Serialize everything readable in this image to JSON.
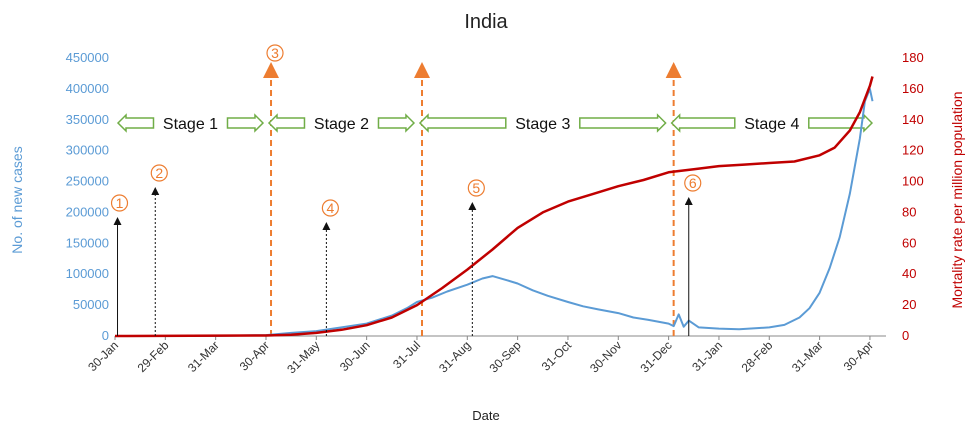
{
  "chart_data": {
    "type": "line",
    "title": "India",
    "xlabel": "Date",
    "ylabel_left": "No. of new cases",
    "ylabel_right": "Mortality rate per million population",
    "ylim_left": [
      0,
      450000
    ],
    "ylim_right": [
      0,
      180
    ],
    "yticks_left": [
      "0",
      "50000",
      "100000",
      "150000",
      "200000",
      "250000",
      "300000",
      "350000",
      "400000",
      "450000"
    ],
    "yticks_right": [
      "0",
      "20",
      "40",
      "60",
      "80",
      "100",
      "120",
      "140",
      "160",
      "180"
    ],
    "x_categories": [
      "30-Jan",
      "29-Feb",
      "31-Mar",
      "30-Apr",
      "31-May",
      "30-Jun",
      "31-Jul",
      "31-Aug",
      "30-Sep",
      "31-Oct",
      "30-Nov",
      "31-Dec",
      "31-Jan",
      "28-Feb",
      "31-Mar",
      "30-Apr"
    ],
    "colors": {
      "cases": "#5b9bd5",
      "mortality": "#c00000",
      "stage_line": "#ed7d31",
      "stage_arrow": "#70ad47"
    },
    "series": [
      {
        "axis": "left",
        "x": [
          0,
          1,
          2,
          3,
          3.5,
          4,
          4.5,
          5,
          5.5,
          5.8,
          6,
          6.3,
          6.6,
          7,
          7.3,
          7.5,
          7.8,
          8,
          8.3,
          8.6,
          9,
          9.3,
          9.6,
          10,
          10.3,
          10.6,
          11,
          11.1,
          11.2,
          11.3,
          11.4,
          11.6,
          12,
          12.4,
          12.8,
          13,
          13.3,
          13.6,
          13.8,
          14,
          14.2,
          14.4,
          14.6,
          14.8,
          14.9,
          15,
          15.05
        ],
        "values": [
          0,
          0,
          100,
          1500,
          5000,
          8000,
          14000,
          20000,
          33000,
          45000,
          55000,
          62000,
          72000,
          83000,
          93000,
          97000,
          90000,
          85000,
          74000,
          65000,
          55000,
          48000,
          43000,
          37000,
          30000,
          26000,
          20000,
          16000,
          35000,
          15000,
          25000,
          14000,
          12000,
          11000,
          13000,
          14000,
          18000,
          30000,
          45000,
          70000,
          110000,
          160000,
          230000,
          320000,
          380000,
          400000,
          380000
        ]
      },
      {
        "axis": "right",
        "x": [
          0,
          3,
          3.5,
          4,
          4.5,
          5,
          5.5,
          6,
          6.5,
          7,
          7.5,
          8,
          8.5,
          9,
          9.5,
          10,
          10.5,
          11,
          11.5,
          12,
          12.5,
          13,
          13.5,
          14,
          14.3,
          14.6,
          14.8,
          15,
          15.05
        ],
        "values": [
          0,
          0.3,
          0.8,
          2,
          4,
          7,
          12,
          20,
          31,
          43,
          56,
          70,
          80,
          87,
          92,
          97,
          101,
          106,
          108,
          110,
          111,
          112,
          113,
          117,
          122,
          133,
          145,
          162,
          168
        ]
      }
    ],
    "stages": [
      {
        "label": "Stage 1",
        "from": 0,
        "to": 3
      },
      {
        "label": "Stage 2",
        "from": 3,
        "to": 6
      },
      {
        "label": "Stage 3",
        "from": 6,
        "to": 11
      },
      {
        "label": "Stage 4",
        "from": 11,
        "to": 15.1
      }
    ],
    "stage_lines": [
      3.1,
      6.1,
      11.1
    ],
    "markers": [
      {
        "label": "①",
        "x": 0.05,
        "style": "solid"
      },
      {
        "label": "②",
        "x": 0.8,
        "style": "dotted"
      },
      {
        "label": "③",
        "x": 3.1,
        "style": "orange"
      },
      {
        "label": "④",
        "x": 4.2,
        "style": "dotted"
      },
      {
        "label": "⑤",
        "x": 7.1,
        "style": "dotted"
      },
      {
        "label": "⑥",
        "x": 11.4,
        "style": "solid"
      }
    ]
  }
}
